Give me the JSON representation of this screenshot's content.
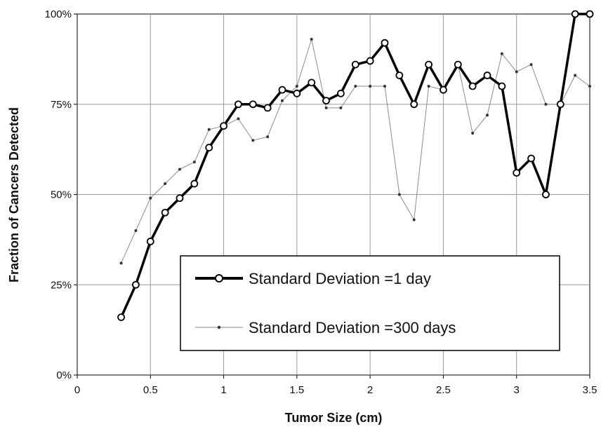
{
  "chart_data": {
    "type": "line",
    "xlabel": "Tumor Size (cm)",
    "ylabel": "Fraction of Cancers Detected",
    "xlim": [
      0,
      3.5
    ],
    "ylim": [
      0,
      100
    ],
    "x_ticks": [
      "0",
      "0.5",
      "1",
      "1.5",
      "2",
      "2.5",
      "3",
      "3.5"
    ],
    "y_ticks": [
      "0%",
      "25%",
      "50%",
      "75%",
      "100%"
    ],
    "grid": true,
    "legend_position": "bottom-right",
    "series": [
      {
        "name": "Standard Deviation =1 day",
        "color": "#000000",
        "style": "thick-line-open-circles",
        "x": [
          0.3,
          0.4,
          0.5,
          0.6,
          0.7,
          0.8,
          0.9,
          1.0,
          1.1,
          1.2,
          1.3,
          1.4,
          1.5,
          1.6,
          1.7,
          1.8,
          1.9,
          2.0,
          2.1,
          2.2,
          2.3,
          2.4,
          2.5,
          2.6,
          2.7,
          2.8,
          2.9,
          3.0,
          3.1,
          3.2,
          3.3,
          3.4,
          3.5
        ],
        "y": [
          16,
          25,
          37,
          45,
          49,
          53,
          63,
          69,
          75,
          75,
          74,
          79,
          78,
          81,
          76,
          78,
          86,
          87,
          92,
          83,
          75,
          86,
          79,
          86,
          80,
          83,
          80,
          56,
          60,
          50,
          75,
          100,
          100
        ]
      },
      {
        "name": "Standard Deviation =300 days",
        "color": "#8a8a8a",
        "style": "thin-line-small-dots",
        "x": [
          0.3,
          0.4,
          0.5,
          0.6,
          0.7,
          0.8,
          0.9,
          1.0,
          1.1,
          1.2,
          1.3,
          1.4,
          1.5,
          1.6,
          1.7,
          1.8,
          1.9,
          2.0,
          2.1,
          2.2,
          2.3,
          2.4,
          2.5,
          2.6,
          2.7,
          2.8,
          2.9,
          3.0,
          3.1,
          3.2,
          3.3,
          3.4,
          3.5
        ],
        "y": [
          31,
          40,
          49,
          53,
          57,
          59,
          68,
          69,
          71,
          65,
          66,
          76,
          80,
          93,
          74,
          74,
          80,
          80,
          80,
          50,
          43,
          80,
          79,
          86,
          67,
          72,
          89,
          84,
          86,
          75,
          75,
          83,
          80
        ]
      }
    ]
  }
}
